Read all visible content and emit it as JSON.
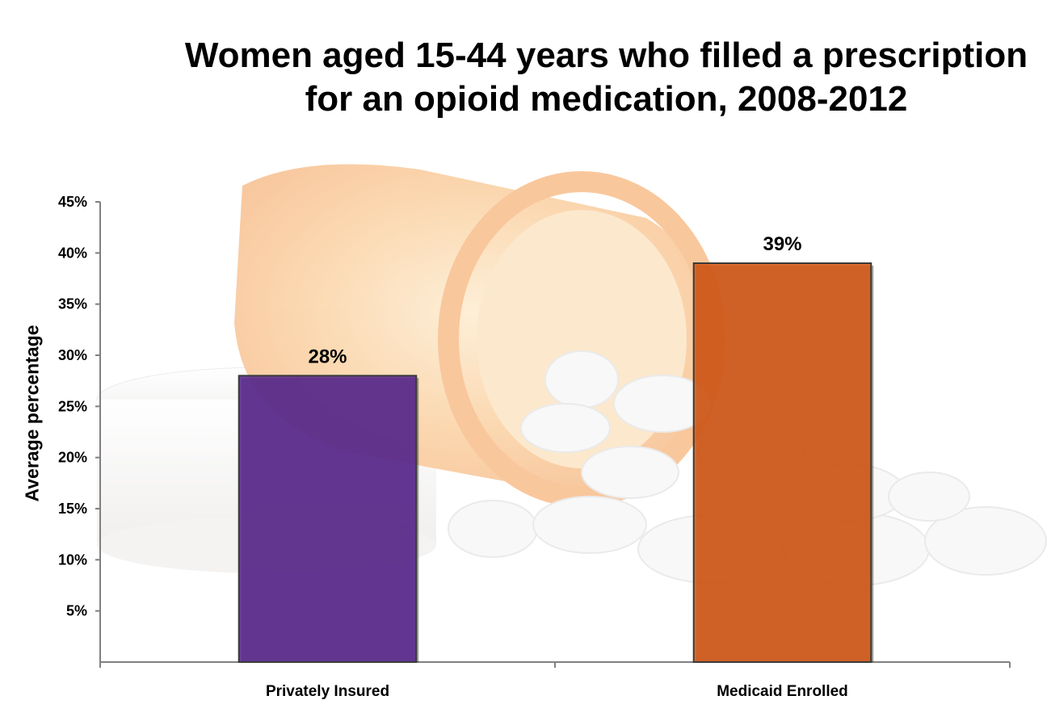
{
  "title_lines": [
    "Women aged 15-44 years who filled a prescription",
    "for an opioid medication, 2008-2012"
  ],
  "chart_data": {
    "type": "bar",
    "categories": [
      "Privately Insured",
      "Medicaid Enrolled"
    ],
    "values": [
      28,
      39
    ],
    "data_labels": [
      "28%",
      "39%"
    ],
    "ylabel": "Average percentage",
    "xlabel": "",
    "ylim": [
      0,
      45
    ],
    "yticks": [
      5,
      10,
      15,
      20,
      25,
      30,
      35,
      40,
      45
    ],
    "ytick_labels": [
      "5%",
      "10%",
      "15%",
      "20%",
      "25%",
      "30%",
      "35%",
      "40%",
      "45%"
    ],
    "colors": [
      "#5b2a8e",
      "#d45a18"
    ],
    "grid": false,
    "legend": "none",
    "background": "photo of spilled orange prescription bottle and white pills"
  }
}
